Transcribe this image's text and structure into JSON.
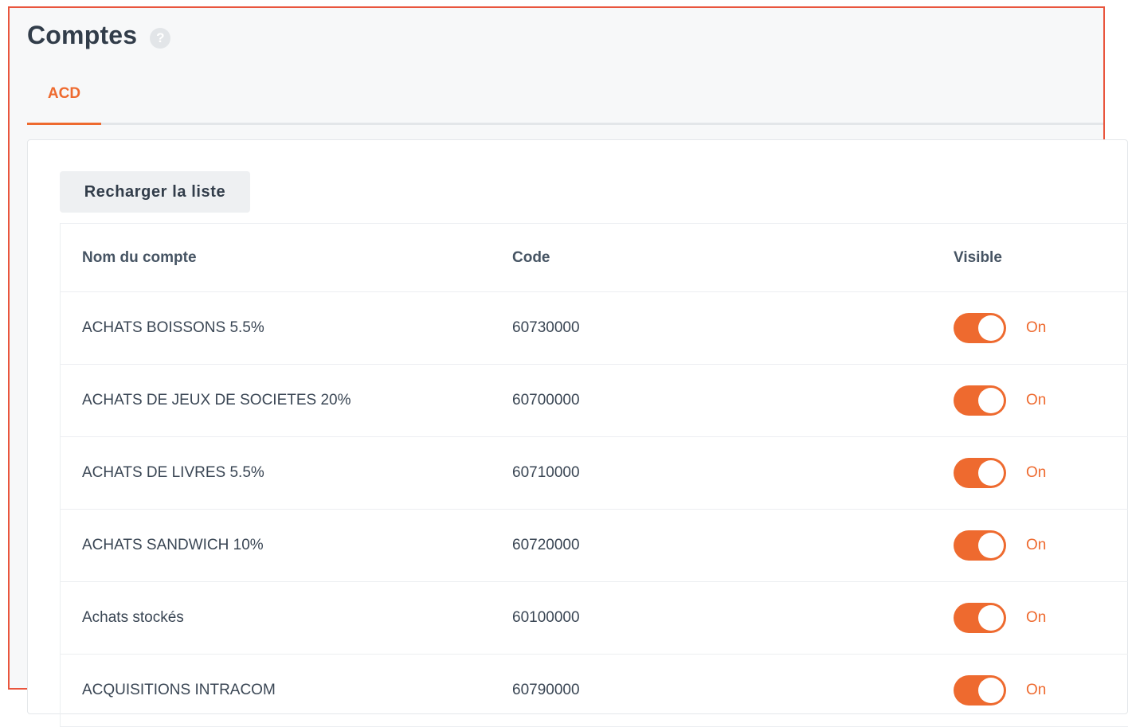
{
  "page": {
    "title": "Comptes",
    "help_icon": "?"
  },
  "tabs": [
    {
      "label": "ACD",
      "active": true
    }
  ],
  "toolbar": {
    "reload_label": "Recharger la liste"
  },
  "table": {
    "columns": [
      "Nom du compte",
      "Code",
      "Visible"
    ],
    "rows": [
      {
        "name": "ACHATS BOISSONS 5.5%",
        "code": "60730000",
        "visible": true,
        "visible_label": "On"
      },
      {
        "name": "ACHATS DE JEUX DE SOCIETES 20%",
        "code": "60700000",
        "visible": true,
        "visible_label": "On"
      },
      {
        "name": "ACHATS DE LIVRES 5.5%",
        "code": "60710000",
        "visible": true,
        "visible_label": "On"
      },
      {
        "name": "ACHATS SANDWICH 10%",
        "code": "60720000",
        "visible": true,
        "visible_label": "On"
      },
      {
        "name": "Achats stockés",
        "code": "60100000",
        "visible": true,
        "visible_label": "On"
      },
      {
        "name": "ACQUISITIONS INTRACOM",
        "code": "60790000",
        "visible": true,
        "visible_label": "On"
      }
    ]
  },
  "colors": {
    "accent": "#ee6a2f",
    "frame_border": "#e9553d",
    "text": "#3a4654"
  }
}
